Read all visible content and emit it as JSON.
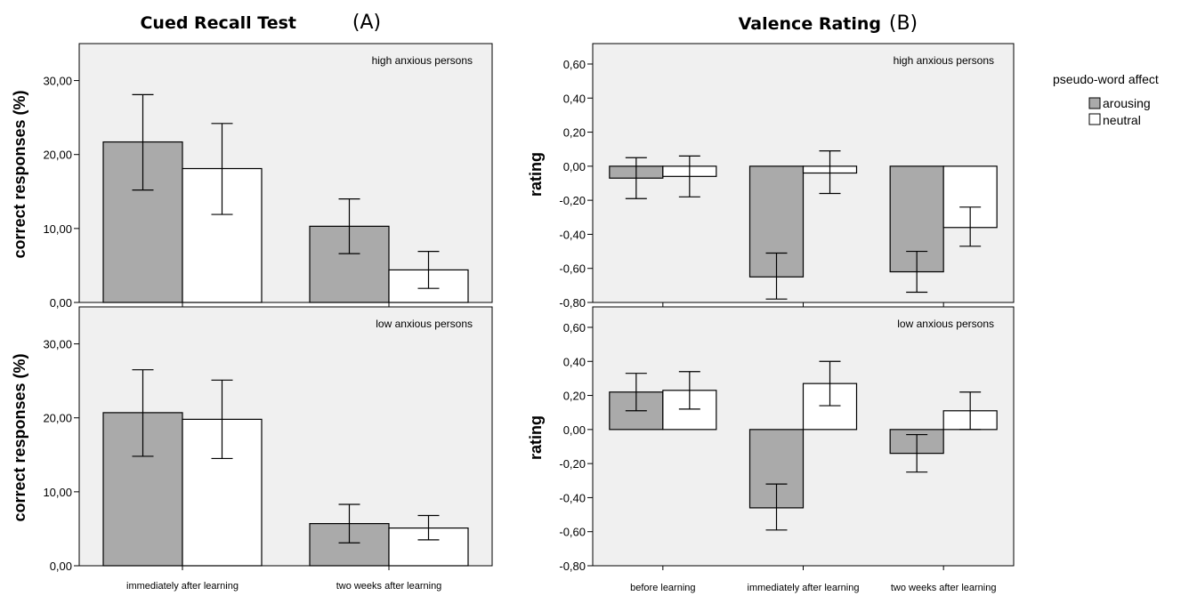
{
  "legend": {
    "title": "pseudo-word affect",
    "items": [
      {
        "label": "arousing",
        "color": "#aaaaaa"
      },
      {
        "label": "neutral",
        "color": "#ffffff"
      }
    ]
  },
  "colors": {
    "panel_bg": "#f0f0f0",
    "arousing": "#aaaaaa",
    "neutral": "#ffffff",
    "stroke": "#000000"
  },
  "chart_data": [
    {
      "id": "A",
      "type": "bar",
      "title": "Cued Recall Test",
      "title_letter": "(A)",
      "ylabel": "correct responses (%)",
      "categories": [
        "immediately after learning",
        "two weeks after learning"
      ],
      "ylim": [
        0,
        35
      ],
      "yticks": [
        0,
        10,
        20,
        30
      ],
      "ytick_labels": [
        "0,00",
        "10,00",
        "20,00",
        "30,00"
      ],
      "panels": [
        {
          "label": "high anxious persons",
          "series": [
            {
              "name": "arousing",
              "values": [
                21.7,
                10.3
              ],
              "err_low": [
                15.2,
                6.6
              ],
              "err_high": [
                28.1,
                14.0
              ]
            },
            {
              "name": "neutral",
              "values": [
                18.1,
                4.4
              ],
              "err_low": [
                11.9,
                1.9
              ],
              "err_high": [
                24.2,
                6.9
              ]
            }
          ]
        },
        {
          "label": "low anxious persons",
          "series": [
            {
              "name": "arousing",
              "values": [
                20.7,
                5.7
              ],
              "err_low": [
                14.8,
                3.1
              ],
              "err_high": [
                26.5,
                8.3
              ]
            },
            {
              "name": "neutral",
              "values": [
                19.8,
                5.1
              ],
              "err_low": [
                14.5,
                3.5
              ],
              "err_high": [
                25.1,
                6.8
              ]
            }
          ]
        }
      ]
    },
    {
      "id": "B",
      "type": "bar",
      "title": "Valence Rating",
      "title_letter": "(B)",
      "ylabel": "rating",
      "categories": [
        "before learning",
        "immediately after learning",
        "two weeks after learning"
      ],
      "ylim": [
        -0.8,
        0.72
      ],
      "yticks": [
        -0.8,
        -0.6,
        -0.4,
        -0.2,
        0.0,
        0.2,
        0.4,
        0.6
      ],
      "ytick_labels": [
        "-0,80",
        "-0,60",
        "-0,40",
        "-0,20",
        "0,00",
        "0,20",
        "0,40",
        "0,60"
      ],
      "panels": [
        {
          "label": "high anxious persons",
          "series": [
            {
              "name": "arousing",
              "values": [
                -0.07,
                -0.65,
                -0.62
              ],
              "err_low": [
                -0.19,
                -0.78,
                -0.74
              ],
              "err_high": [
                0.05,
                -0.51,
                -0.5
              ]
            },
            {
              "name": "neutral",
              "values": [
                -0.06,
                -0.04,
                -0.36
              ],
              "err_low": [
                -0.18,
                -0.16,
                -0.47
              ],
              "err_high": [
                0.06,
                0.09,
                -0.24
              ]
            }
          ]
        },
        {
          "label": "low anxious persons",
          "series": [
            {
              "name": "arousing",
              "values": [
                0.22,
                -0.46,
                -0.14
              ],
              "err_low": [
                0.11,
                -0.59,
                -0.25
              ],
              "err_high": [
                0.33,
                -0.32,
                -0.03
              ]
            },
            {
              "name": "neutral",
              "values": [
                0.23,
                0.27,
                0.11
              ],
              "err_low": [
                0.12,
                0.14,
                0.0
              ],
              "err_high": [
                0.34,
                0.4,
                0.22
              ]
            }
          ]
        }
      ]
    }
  ]
}
